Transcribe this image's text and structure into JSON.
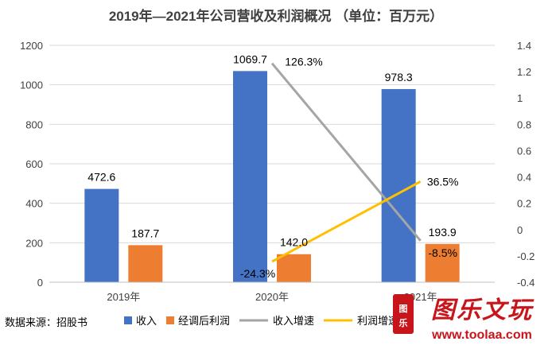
{
  "chart_data": {
    "type": "bar",
    "title": "2019年—2021年公司营收及利润概况 （单位：百万元）",
    "categories": [
      "2019年",
      "2020年",
      "2021年"
    ],
    "series": [
      {
        "name": "收入",
        "kind": "bar",
        "axis": "left",
        "color": "#4472C4",
        "values": [
          472.6,
          1069.7,
          978.3
        ],
        "labels": [
          "472.6",
          "1069.7",
          "978.3"
        ]
      },
      {
        "name": "经调后利润",
        "kind": "bar",
        "axis": "left",
        "color": "#ED7D31",
        "values": [
          187.7,
          142.0,
          193.9
        ],
        "labels": [
          "187.7",
          "142.0",
          "193.9"
        ]
      },
      {
        "name": "收入增速",
        "kind": "line",
        "axis": "right",
        "color": "#A5A5A5",
        "values": [
          null,
          1.263,
          -0.085
        ],
        "labels": [
          "",
          "126.3%",
          "-8.5%"
        ]
      },
      {
        "name": "利润增速",
        "kind": "line",
        "axis": "right",
        "color": "#FFC000",
        "values": [
          null,
          -0.243,
          0.365
        ],
        "labels": [
          "",
          "-24.3%",
          "36.5%"
        ]
      }
    ],
    "y_left": {
      "min": 0,
      "max": 1200,
      "step": 200,
      "ticks": [
        "0",
        "200",
        "400",
        "600",
        "800",
        "1000",
        "1200"
      ]
    },
    "y_right": {
      "min": -0.4,
      "max": 1.4,
      "step": 0.2,
      "ticks": [
        "-0.4",
        "-0.2",
        "0",
        "0.2",
        "0.4",
        "0.6",
        "0.8",
        "1",
        "1.2",
        "1.4"
      ]
    },
    "grid": true,
    "legend_position": "bottom"
  },
  "source_note": "数据来源：招股书",
  "watermark": {
    "brand": "图乐文玩",
    "url": "www.toolaa.com"
  }
}
